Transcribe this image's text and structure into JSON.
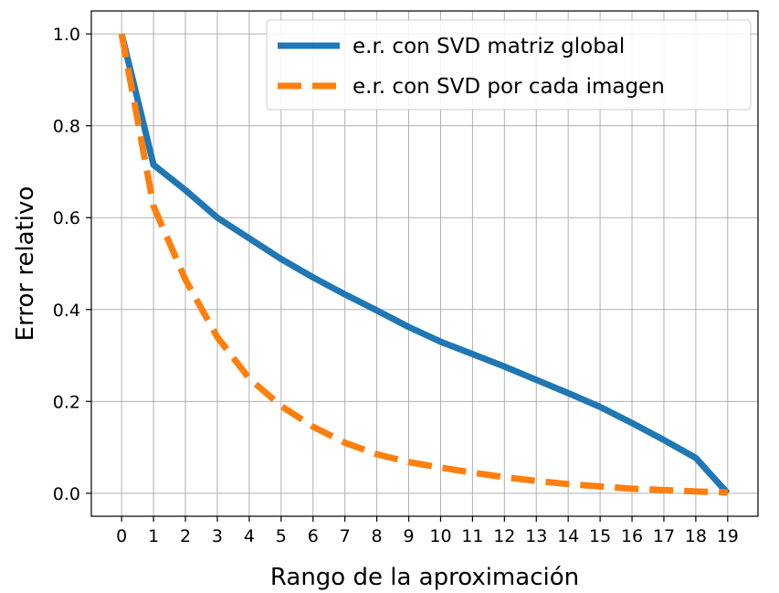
{
  "chart_data": {
    "type": "line",
    "title": "",
    "xlabel": "Rango de la aproximación",
    "ylabel": "Error relativo",
    "x": [
      0,
      1,
      2,
      3,
      4,
      5,
      6,
      7,
      8,
      9,
      10,
      11,
      12,
      13,
      14,
      15,
      16,
      17,
      18,
      19
    ],
    "xticks": [
      "0",
      "1",
      "2",
      "3",
      "4",
      "5",
      "6",
      "7",
      "8",
      "9",
      "10",
      "11",
      "12",
      "13",
      "14",
      "15",
      "16",
      "17",
      "18",
      "19"
    ],
    "yticks": [
      "0.0",
      "0.2",
      "0.4",
      "0.6",
      "0.8",
      "1.0"
    ],
    "xlim": [
      -0.95,
      19.95
    ],
    "ylim": [
      -0.05,
      1.05
    ],
    "grid": true,
    "legend_position": "top-right",
    "series": [
      {
        "name": "e.r. con SVD matriz global",
        "color": "#1f77b4",
        "style": "solid",
        "values": [
          1.0,
          0.715,
          0.66,
          0.6,
          0.555,
          0.51,
          0.47,
          0.433,
          0.398,
          0.362,
          0.33,
          0.303,
          0.276,
          0.247,
          0.218,
          0.188,
          0.153,
          0.116,
          0.077,
          0.0
        ]
      },
      {
        "name": "e.r. con SVD por cada imagen",
        "color": "#ff7f0e",
        "style": "dashed",
        "values": [
          1.0,
          0.625,
          0.465,
          0.34,
          0.25,
          0.19,
          0.145,
          0.11,
          0.085,
          0.068,
          0.056,
          0.045,
          0.035,
          0.027,
          0.02,
          0.015,
          0.01,
          0.007,
          0.004,
          0.002
        ]
      }
    ]
  }
}
